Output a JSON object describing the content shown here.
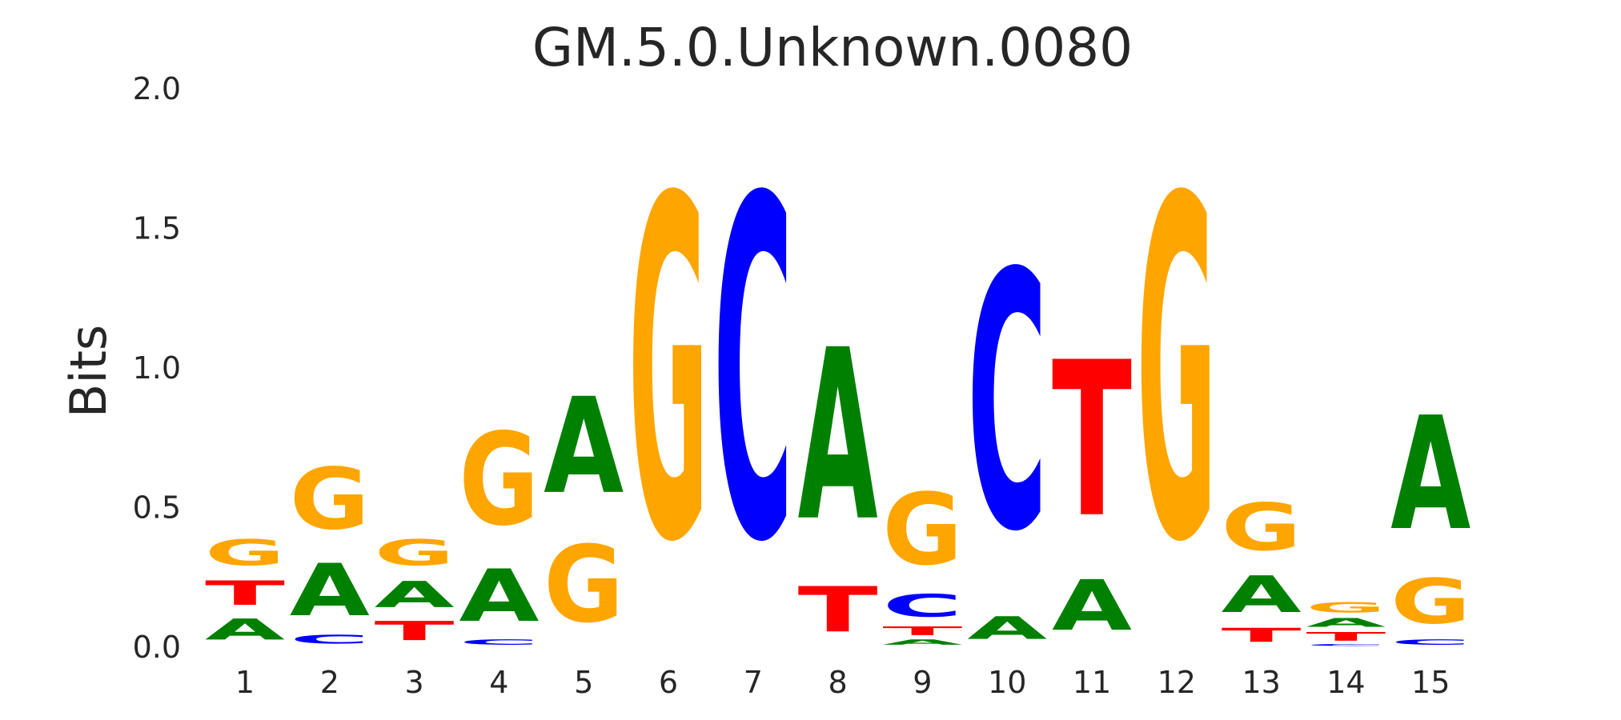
{
  "chart_data": {
    "type": "sequence-logo",
    "title": "GM.5.0.Unknown.0080",
    "ylabel": "Bits",
    "xlabel": "",
    "ylim": [
      0,
      2
    ],
    "yticks": [
      "0.0",
      "0.5",
      "1.0",
      "1.5",
      "2.0"
    ],
    "ytick_values": [
      0,
      0.5,
      1.0,
      1.5,
      2.0
    ],
    "grid": false,
    "colors": {
      "A": "#008000",
      "C": "#0000ff",
      "G": "#ffa500",
      "T": "#ff0000"
    },
    "positions": [
      {
        "label": "1",
        "stack": [
          {
            "letter": "A",
            "height": 0.12
          },
          {
            "letter": "T",
            "height": 0.14
          },
          {
            "letter": "G",
            "height": 0.15
          }
        ]
      },
      {
        "label": "2",
        "stack": [
          {
            "letter": "C",
            "height": 0.05
          },
          {
            "letter": "A",
            "height": 0.3
          },
          {
            "letter": "G",
            "height": 0.35
          }
        ]
      },
      {
        "label": "3",
        "stack": [
          {
            "letter": "T",
            "height": 0.11
          },
          {
            "letter": "A",
            "height": 0.15
          },
          {
            "letter": "G",
            "height": 0.15
          }
        ]
      },
      {
        "label": "4",
        "stack": [
          {
            "letter": "C",
            "height": 0.03
          },
          {
            "letter": "A",
            "height": 0.3
          },
          {
            "letter": "G",
            "height": 0.53
          }
        ]
      },
      {
        "label": "5",
        "stack": [
          {
            "letter": "G",
            "height": 0.44
          },
          {
            "letter": "A",
            "height": 0.55
          }
        ]
      },
      {
        "label": "6",
        "stack": [
          {
            "letter": "G",
            "height": 1.95
          }
        ]
      },
      {
        "label": "7",
        "stack": [
          {
            "letter": "C",
            "height": 1.95
          }
        ]
      },
      {
        "label": "8",
        "stack": [
          {
            "letter": "T",
            "height": 0.26
          },
          {
            "letter": "A",
            "height": 0.98
          }
        ]
      },
      {
        "label": "9",
        "stack": [
          {
            "letter": "A",
            "height": 0.03
          },
          {
            "letter": "T",
            "height": 0.05
          },
          {
            "letter": "C",
            "height": 0.13
          },
          {
            "letter": "G",
            "height": 0.41
          }
        ]
      },
      {
        "label": "10",
        "stack": [
          {
            "letter": "A",
            "height": 0.13
          },
          {
            "letter": "C",
            "height": 1.47
          }
        ]
      },
      {
        "label": "11",
        "stack": [
          {
            "letter": "A",
            "height": 0.29
          },
          {
            "letter": "T",
            "height": 0.89
          }
        ]
      },
      {
        "label": "12",
        "stack": [
          {
            "letter": "G",
            "height": 1.95
          }
        ]
      },
      {
        "label": "13",
        "stack": [
          {
            "letter": "T",
            "height": 0.08
          },
          {
            "letter": "A",
            "height": 0.21
          },
          {
            "letter": "G",
            "height": 0.27
          }
        ]
      },
      {
        "label": "14",
        "stack": [
          {
            "letter": "C",
            "height": 0.01
          },
          {
            "letter": "T",
            "height": 0.05
          },
          {
            "letter": "A",
            "height": 0.05
          },
          {
            "letter": "G",
            "height": 0.06
          }
        ]
      },
      {
        "label": "15",
        "stack": [
          {
            "letter": "C",
            "height": 0.03
          },
          {
            "letter": "G",
            "height": 0.26
          },
          {
            "letter": "A",
            "height": 0.65
          }
        ]
      }
    ]
  }
}
